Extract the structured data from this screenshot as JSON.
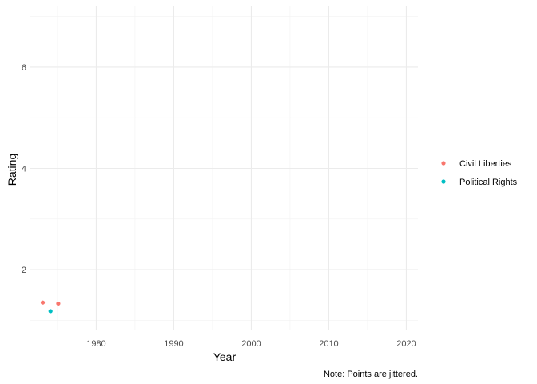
{
  "chart_data": {
    "type": "scatter",
    "xlabel": "Year",
    "ylabel": "Rating",
    "caption": "Note: Points are jittered.",
    "xlim": [
      1971.5,
      2021.5
    ],
    "ylim": [
      0.8,
      7.2
    ],
    "x_ticks": [
      1980,
      1990,
      2000,
      2010,
      2020
    ],
    "y_ticks": [
      2,
      4,
      6
    ],
    "grid": true,
    "legend_position": "right",
    "series": [
      {
        "name": "Civil Liberties",
        "color": "#F8766D",
        "points": [
          {
            "x": 1973.1,
            "y": 1.35
          },
          {
            "x": 1975.1,
            "y": 1.33
          }
        ]
      },
      {
        "name": "Political Rights",
        "color": "#00BFC4",
        "points": [
          {
            "x": 1974.1,
            "y": 1.18
          }
        ]
      }
    ]
  }
}
